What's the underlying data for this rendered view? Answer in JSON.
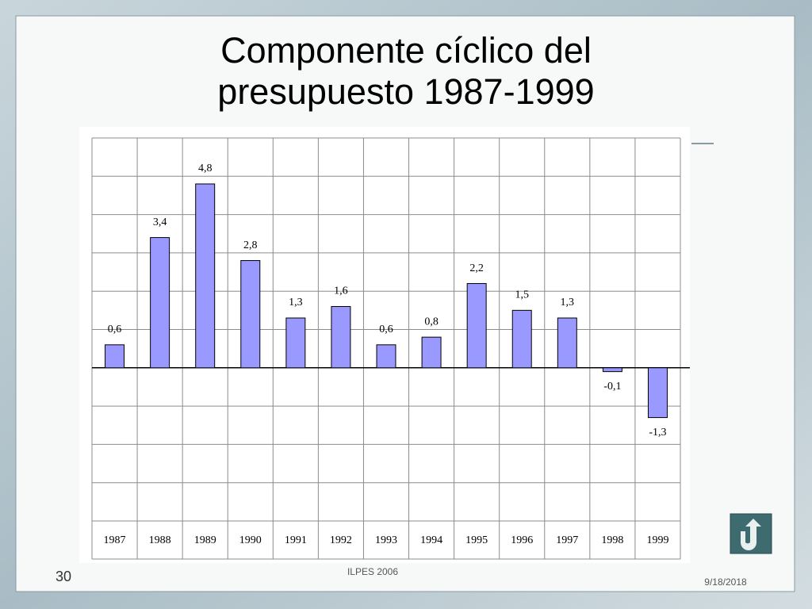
{
  "chart_data": {
    "type": "bar",
    "title": "Componente cíclico del presupuesto 1987-1999",
    "categories": [
      "1987",
      "1988",
      "1989",
      "1990",
      "1991",
      "1992",
      "1993",
      "1994",
      "1995",
      "1996",
      "1997",
      "1998",
      "1999"
    ],
    "values": [
      0.6,
      3.4,
      4.8,
      2.8,
      1.3,
      1.6,
      0.6,
      0.8,
      2.2,
      1.5,
      1.3,
      -0.1,
      -1.3
    ],
    "value_labels": [
      "0,6",
      "3,4",
      "4,8",
      "2,8",
      "1,3",
      "1,6",
      "0,6",
      "0,8",
      "2,2",
      "1,5",
      "1,3",
      "-0,1",
      "-1,3"
    ],
    "color": "#9999ff",
    "ylim": [
      -4,
      6
    ],
    "yticks": [
      -4,
      -3,
      -2,
      -1,
      0,
      1,
      2,
      3,
      4,
      5,
      6
    ],
    "grid": true
  },
  "footer": {
    "page": "30",
    "center": "ILPES 2006",
    "date": "9/18/2018"
  }
}
